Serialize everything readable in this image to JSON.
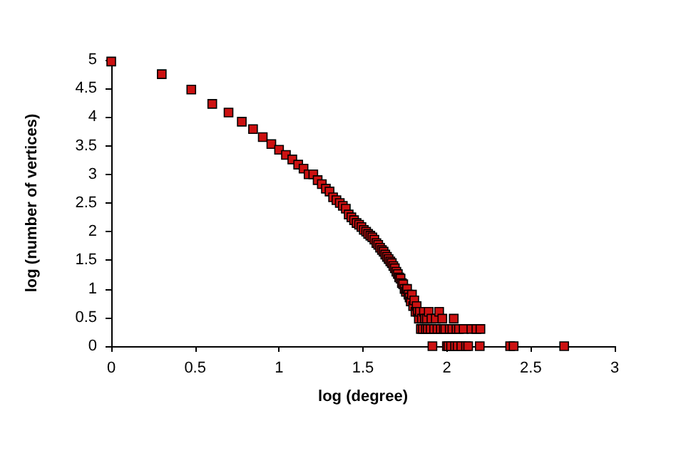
{
  "chart_data": {
    "type": "scatter",
    "xlabel": "log (degree)",
    "ylabel": "log (number of vertices)",
    "xlim": [
      0,
      3
    ],
    "xticks": [
      0,
      0.5,
      1,
      1.5,
      2,
      2.5,
      3
    ],
    "ylim": [
      0,
      5
    ],
    "yticks": [
      0,
      0.5,
      1,
      1.5,
      2,
      2.5,
      3,
      3.5,
      4,
      4.5,
      5
    ],
    "grid": false,
    "marker": "square",
    "series": [
      {
        "color": "#cc1111",
        "x": [
          0,
          0.301,
          0.477,
          0.602,
          0.699,
          0.778,
          0.845,
          0.903,
          0.954,
          1.0,
          1.041,
          1.079,
          1.114,
          1.146,
          1.176,
          1.204,
          1.23,
          1.255,
          1.279,
          1.301,
          1.322,
          1.342,
          1.362,
          1.38,
          1.398,
          1.415,
          1.431,
          1.447,
          1.462,
          1.477,
          1.491,
          1.505,
          1.519,
          1.531,
          1.544,
          1.556,
          1.568,
          1.58,
          1.591,
          1.602,
          1.613,
          1.623,
          1.633,
          1.643,
          1.653,
          1.663,
          1.672,
          1.681,
          1.69,
          1.699,
          1.708,
          1.716,
          1.724,
          1.732,
          1.74,
          1.748,
          1.756,
          1.763,
          1.771,
          1.778,
          1.785,
          1.792,
          1.799,
          1.806,
          1.813,
          1.82,
          1.826,
          1.833,
          1.839,
          1.845,
          1.851,
          1.857,
          1.863,
          1.869,
          1.875,
          1.881,
          1.886,
          1.892,
          1.903,
          1.908,
          1.914,
          1.924,
          1.934,
          1.944,
          1.954,
          1.964,
          1.973,
          1.982,
          1.991,
          2.0,
          2.009,
          2.017,
          2.025,
          2.033,
          2.041,
          2.049,
          2.057,
          2.064,
          2.072,
          2.086,
          2.1,
          2.114,
          2.127,
          2.146,
          2.176,
          2.196,
          2.2,
          2.377,
          2.398,
          2.699
        ],
        "values": [
          4.97,
          4.75,
          4.48,
          4.23,
          4.08,
          3.92,
          3.79,
          3.65,
          3.53,
          3.43,
          3.34,
          3.26,
          3.17,
          3.1,
          3.0,
          3.0,
          2.9,
          2.83,
          2.75,
          2.7,
          2.6,
          2.55,
          2.5,
          2.45,
          2.4,
          2.3,
          2.25,
          2.2,
          2.15,
          2.12,
          2.08,
          2.03,
          2.0,
          1.96,
          1.93,
          1.9,
          1.86,
          1.8,
          1.77,
          1.72,
          1.68,
          1.65,
          1.6,
          1.56,
          1.52,
          1.48,
          1.45,
          1.4,
          1.36,
          1.3,
          1.26,
          1.2,
          1.18,
          1.1,
          1.08,
          1.0,
          0.95,
          1.0,
          0.9,
          0.85,
          0.78,
          0.9,
          0.7,
          0.8,
          0.6,
          0.7,
          0.6,
          0.48,
          0.6,
          0.3,
          0.48,
          0.3,
          0.6,
          0.48,
          0.3,
          0.48,
          0.3,
          0.6,
          0.3,
          0.48,
          0,
          0.3,
          0.48,
          0.3,
          0.6,
          0.3,
          0.48,
          0.3,
          0.3,
          0,
          0,
          0.3,
          0,
          0.3,
          0.48,
          0,
          0.3,
          0,
          0.3,
          0,
          0.3,
          0,
          0,
          0.3,
          0.3,
          0,
          0.3,
          0,
          0,
          0
        ]
      }
    ]
  }
}
